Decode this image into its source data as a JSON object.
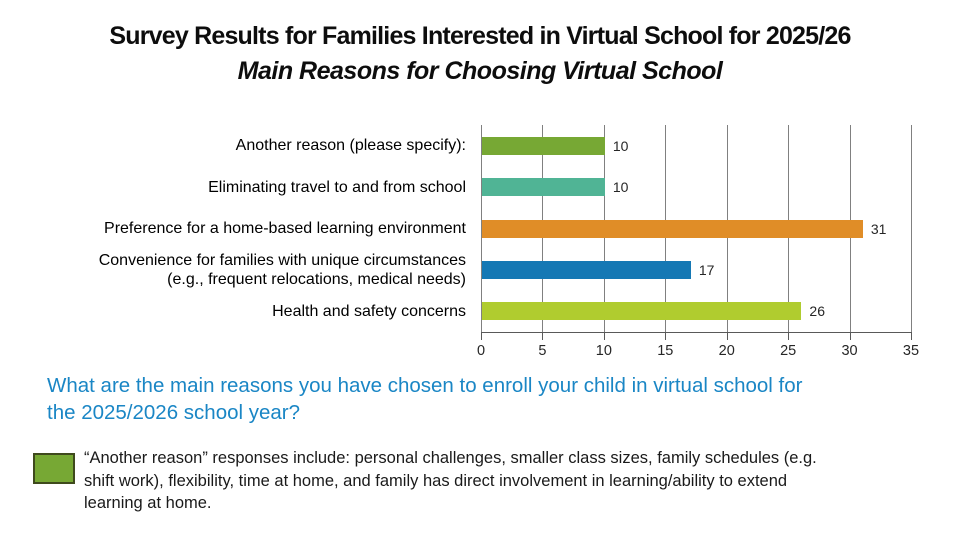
{
  "title": {
    "line1": "Survey Results for Families Interested in Virtual School for 2025/26",
    "line2": "Main Reasons for Choosing Virtual School"
  },
  "chart_data": {
    "type": "bar",
    "orientation": "horizontal",
    "categories": [
      "Another reason (please specify):",
      "Eliminating travel to and from school",
      "Preference for a home-based learning environment",
      "Convenience for families with unique circumstances\n(e.g., frequent relocations, medical needs)",
      "Health and safety concerns"
    ],
    "values": [
      10,
      10,
      31,
      17,
      26
    ],
    "bar_colors": [
      "#77A834",
      "#50B495",
      "#E08D27",
      "#1578B4",
      "#B0CC2F"
    ],
    "xlim": [
      0,
      35
    ],
    "xticks": [
      0,
      5,
      10,
      15,
      20,
      25,
      30,
      35
    ],
    "grid": true,
    "gridline_color": "#808080",
    "axis_color": "#595959",
    "value_labels_shown": true,
    "legend_position": "none",
    "title": "Main Reasons for Choosing Virtual School"
  },
  "question": {
    "text": "What are the main reasons you have chosen to enroll your child in virtual school for\nthe 2025/2026 school year?",
    "color": "#1A86C5"
  },
  "note": {
    "swatch_color": "#77A834",
    "swatch_border_color": "#3F4A1D",
    "text": "“Another reason” responses include: personal challenges, smaller class sizes, family schedules (e.g.\nshift work), flexibility, time at home, and family has direct involvement in learning/ability to extend\nlearning at home."
  }
}
